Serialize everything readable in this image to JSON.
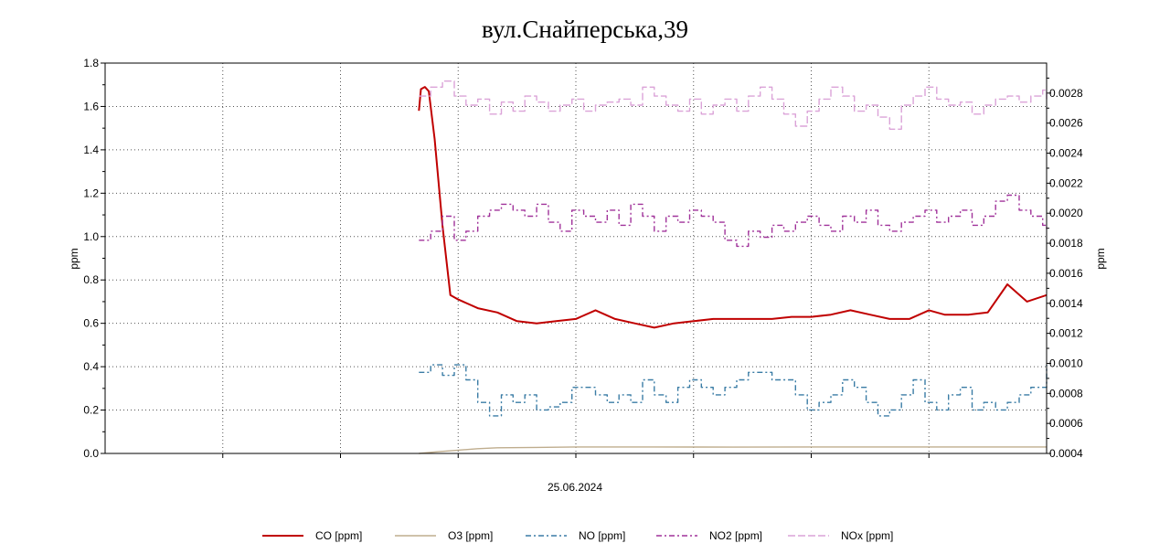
{
  "chart_data": {
    "type": "line",
    "title": "вул.Снайперська,39",
    "xlabel": "25.06.2024",
    "ylabel_left": "ppm",
    "ylabel_right": "ppm",
    "x_range": [
      0,
      24
    ],
    "ylim_left": [
      0,
      1.8
    ],
    "ylim_right": [
      0.0004,
      0.003
    ],
    "left_ticks": [
      "0.0",
      "0.2",
      "0.4",
      "0.6",
      "0.8",
      "1.0",
      "1.2",
      "1.4",
      "1.6",
      "1.8"
    ],
    "left_tick_values": [
      0,
      0.2,
      0.4,
      0.6,
      0.8,
      1.0,
      1.2,
      1.4,
      1.6,
      1.8
    ],
    "right_ticks": [
      "0.0004",
      "0.0006",
      "0.0008",
      "0.0010",
      "0.0012",
      "0.0014",
      "0.0016",
      "0.0018",
      "0.0020",
      "0.0022",
      "0.0024",
      "0.0026",
      "0.0028"
    ],
    "right_tick_values": [
      0.0004,
      0.0006,
      0.0008,
      0.001,
      0.0012,
      0.0014,
      0.0016,
      0.0018,
      0.002,
      0.0022,
      0.0024,
      0.0026,
      0.0028
    ],
    "grid": true,
    "legend_position": "bottom",
    "series": [
      {
        "name": "CO [ppm]",
        "axis": "left",
        "color": "#c00000",
        "dash": "solid",
        "x": [
          8,
          8.05,
          8.15,
          8.25,
          8.4,
          8.6,
          8.8,
          9.0,
          9.5,
          10.0,
          10.5,
          11.0,
          11.5,
          12.0,
          12.5,
          13.0,
          13.5,
          14.0,
          14.5,
          15.0,
          15.5,
          16.0,
          16.5,
          17.0,
          17.5,
          18.0,
          18.5,
          19.0,
          19.5,
          20.0,
          20.5,
          21.0,
          21.2,
          21.4,
          21.6,
          22.0,
          22.5,
          23.0,
          23.5,
          24.0
        ],
        "y": [
          1.58,
          1.68,
          1.69,
          1.67,
          1.45,
          1.05,
          0.73,
          0.71,
          0.67,
          0.65,
          0.61,
          0.6,
          0.61,
          0.62,
          0.66,
          0.62,
          0.6,
          0.58,
          0.6,
          0.61,
          0.62,
          0.62,
          0.62,
          0.62,
          0.63,
          0.63,
          0.64,
          0.66,
          0.64,
          0.62,
          0.62,
          0.66,
          0.65,
          0.64,
          0.64,
          0.64,
          0.65,
          0.78,
          0.7,
          0.73
        ]
      },
      {
        "name": "O3 [ppm]",
        "axis": "left",
        "color": "#bfad8e",
        "dash": "solid",
        "x": [
          8,
          8.5,
          9.0,
          9.5,
          10.0,
          11.0,
          12.0,
          14.0,
          16.0,
          18.0,
          20.0,
          22.0,
          24.0
        ],
        "y": [
          0.0,
          0.008,
          0.015,
          0.022,
          0.026,
          0.028,
          0.03,
          0.03,
          0.029,
          0.03,
          0.03,
          0.03,
          0.03
        ]
      },
      {
        "name": "NO [ppm]",
        "axis": "right",
        "color": "#3a7ca5",
        "dash": "6,3,2,3",
        "x": [
          8.0,
          8.3,
          8.6,
          8.9,
          9.2,
          9.5,
          9.8,
          10.1,
          10.4,
          10.7,
          11.0,
          11.3,
          11.6,
          11.9,
          12.2,
          12.5,
          12.8,
          13.1,
          13.4,
          13.7,
          14.0,
          14.3,
          14.6,
          14.9,
          15.2,
          15.5,
          15.8,
          16.1,
          16.4,
          16.7,
          17.0,
          17.3,
          17.6,
          17.9,
          18.2,
          18.5,
          18.8,
          19.1,
          19.4,
          19.7,
          20.0,
          20.3,
          20.6,
          20.9,
          21.2,
          21.5,
          21.8,
          22.1,
          22.4,
          22.7,
          23.0,
          23.3,
          23.6,
          23.9,
          24.0
        ],
        "y": [
          0.00094,
          0.00099,
          0.00092,
          0.00099,
          0.00089,
          0.00074,
          0.00065,
          0.00079,
          0.00074,
          0.00079,
          0.00069,
          0.00071,
          0.00074,
          0.00084,
          0.00084,
          0.00079,
          0.00074,
          0.00079,
          0.00074,
          0.00089,
          0.00079,
          0.00074,
          0.00084,
          0.00089,
          0.00084,
          0.00079,
          0.00084,
          0.00089,
          0.00094,
          0.00094,
          0.00089,
          0.00089,
          0.00079,
          0.00069,
          0.00074,
          0.00079,
          0.00089,
          0.00084,
          0.00074,
          0.00065,
          0.00069,
          0.00079,
          0.00089,
          0.00074,
          0.00069,
          0.00079,
          0.00084,
          0.00069,
          0.00074,
          0.00069,
          0.00074,
          0.00079,
          0.00084,
          0.00084,
          0.00099
        ]
      },
      {
        "name": "NO2 [ppm]",
        "axis": "right",
        "color": "#a0329a",
        "dash": "6,3,2,3",
        "x": [
          8.0,
          8.3,
          8.6,
          8.9,
          9.2,
          9.5,
          9.8,
          10.1,
          10.4,
          10.7,
          11.0,
          11.3,
          11.6,
          11.9,
          12.2,
          12.5,
          12.8,
          13.1,
          13.4,
          13.7,
          14.0,
          14.3,
          14.6,
          14.9,
          15.2,
          15.5,
          15.8,
          16.1,
          16.4,
          16.7,
          17.0,
          17.3,
          17.6,
          17.9,
          18.2,
          18.5,
          18.8,
          19.1,
          19.4,
          19.7,
          20.0,
          20.3,
          20.6,
          20.9,
          21.2,
          21.5,
          21.8,
          22.1,
          22.4,
          22.7,
          23.0,
          23.3,
          23.6,
          23.9,
          24.0
        ],
        "y": [
          0.00182,
          0.00188,
          0.00198,
          0.00182,
          0.00188,
          0.00198,
          0.00202,
          0.00206,
          0.00202,
          0.00198,
          0.00206,
          0.00194,
          0.00188,
          0.00202,
          0.00198,
          0.00194,
          0.00202,
          0.00192,
          0.00206,
          0.00198,
          0.00188,
          0.00198,
          0.00194,
          0.00202,
          0.00198,
          0.00194,
          0.00182,
          0.00178,
          0.00188,
          0.00184,
          0.00192,
          0.00188,
          0.00194,
          0.00198,
          0.00192,
          0.00188,
          0.00198,
          0.00194,
          0.00202,
          0.00192,
          0.00188,
          0.00194,
          0.00198,
          0.00202,
          0.00194,
          0.00198,
          0.00202,
          0.00192,
          0.00198,
          0.00208,
          0.00212,
          0.00202,
          0.00198,
          0.00192,
          0.00188
        ]
      },
      {
        "name": "NOx [ppm]",
        "axis": "right",
        "color": "#dba3d8",
        "dash": "8,3",
        "x": [
          8.0,
          8.3,
          8.6,
          8.9,
          9.2,
          9.5,
          9.8,
          10.1,
          10.4,
          10.7,
          11.0,
          11.3,
          11.6,
          11.9,
          12.2,
          12.5,
          12.8,
          13.1,
          13.4,
          13.7,
          14.0,
          14.3,
          14.6,
          14.9,
          15.2,
          15.5,
          15.8,
          16.1,
          16.4,
          16.7,
          17.0,
          17.3,
          17.6,
          17.9,
          18.2,
          18.5,
          18.8,
          19.1,
          19.4,
          19.7,
          20.0,
          20.3,
          20.6,
          20.9,
          21.2,
          21.5,
          21.8,
          22.1,
          22.4,
          22.7,
          23.0,
          23.3,
          23.6,
          23.9,
          24.0
        ],
        "y": [
          0.00278,
          0.00284,
          0.00288,
          0.00278,
          0.00272,
          0.00276,
          0.00266,
          0.00274,
          0.00268,
          0.00278,
          0.00274,
          0.00268,
          0.00272,
          0.00276,
          0.00268,
          0.00272,
          0.00274,
          0.00276,
          0.00272,
          0.00284,
          0.00278,
          0.00272,
          0.00268,
          0.00276,
          0.00266,
          0.00272,
          0.00276,
          0.00268,
          0.00278,
          0.00284,
          0.00276,
          0.00266,
          0.00258,
          0.00268,
          0.00276,
          0.00284,
          0.00278,
          0.00268,
          0.00272,
          0.00264,
          0.00256,
          0.00272,
          0.00278,
          0.00284,
          0.00276,
          0.00272,
          0.00274,
          0.00266,
          0.00272,
          0.00276,
          0.00278,
          0.00274,
          0.00278,
          0.00282,
          0.00276
        ]
      }
    ]
  }
}
